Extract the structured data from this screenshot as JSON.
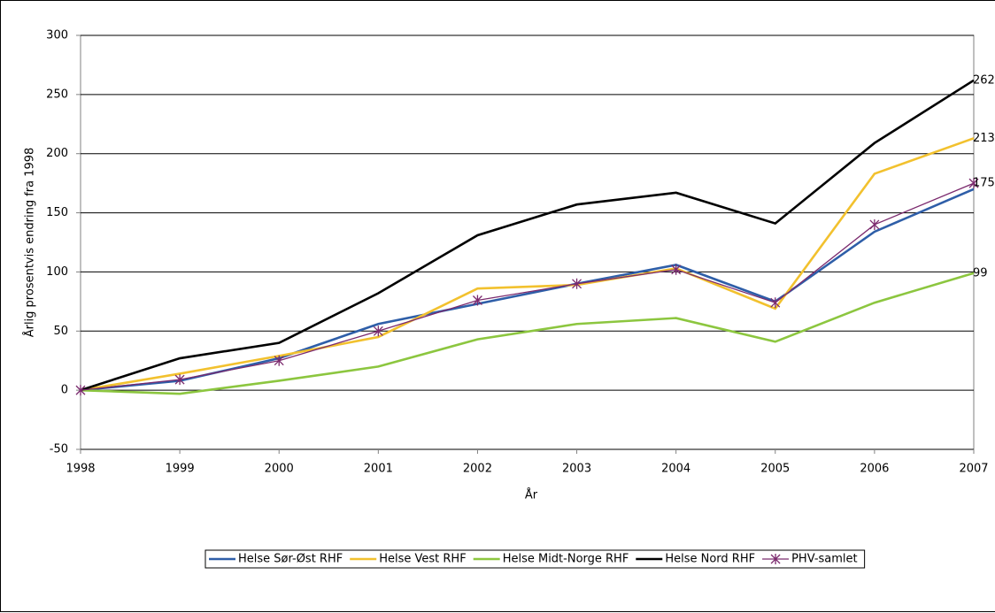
{
  "chart_data": {
    "type": "line",
    "y_label": "Årlig prosentvis endring fra 1998",
    "x_label": "År",
    "x": [
      1998,
      1999,
      2000,
      2001,
      2002,
      2003,
      2004,
      2005,
      2006,
      2007
    ],
    "xlim": [
      1998,
      2007
    ],
    "xticks": [
      1998,
      1999,
      2000,
      2001,
      2002,
      2003,
      2004,
      2005,
      2006,
      2007
    ],
    "ylim": [
      -50,
      300
    ],
    "yticks": [
      -50,
      0,
      50,
      100,
      150,
      200,
      250,
      300
    ],
    "grid": true,
    "legend": "bottom",
    "series": [
      {
        "name": "Helse Sør-Øst RHF",
        "color": "#2e5ea8",
        "values": [
          0,
          8,
          27,
          56,
          73,
          90,
          106,
          75,
          134,
          170
        ],
        "label_last": false,
        "marker": "none"
      },
      {
        "name": "Helse Vest RHF",
        "color": "#f2c12e",
        "values": [
          0,
          14,
          29,
          45,
          86,
          89,
          103,
          69,
          183,
          213
        ],
        "label_last": true,
        "marker": "none"
      },
      {
        "name": "Helse Midt-Norge RHF",
        "color": "#8cc63f",
        "values": [
          0,
          -3,
          8,
          20,
          43,
          56,
          61,
          41,
          74,
          99
        ],
        "label_last": true,
        "marker": "none"
      },
      {
        "name": "Helse Nord RHF",
        "color": "#000000",
        "values": [
          0,
          27,
          40,
          82,
          131,
          157,
          167,
          141,
          209,
          262
        ],
        "label_last": true,
        "marker": "none"
      },
      {
        "name": "PHV-samlet",
        "color": "#7b2a6e",
        "values": [
          0,
          9,
          25,
          50,
          76,
          90,
          102,
          74,
          140,
          175
        ],
        "label_last": true,
        "marker": "star"
      }
    ]
  }
}
